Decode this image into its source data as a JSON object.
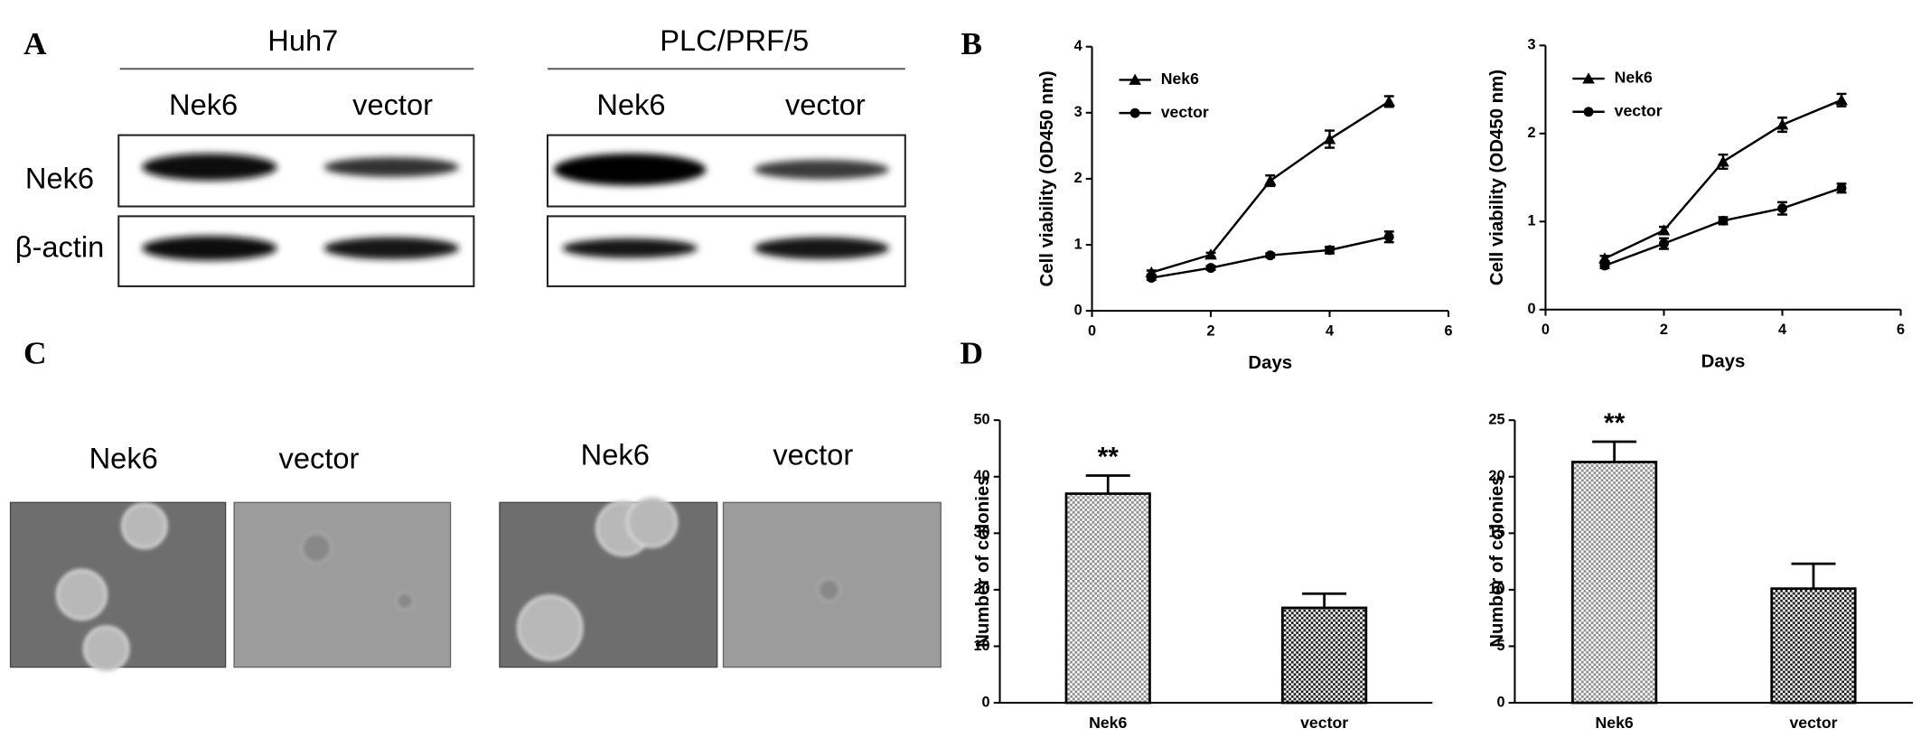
{
  "panel_labels": [
    "A",
    "B",
    "C",
    "D"
  ],
  "blots": {
    "cell_lines": [
      "Huh7",
      "PLC/PRF/5"
    ],
    "lanes": [
      "Nek6",
      "vector",
      "Nek6",
      "vector"
    ],
    "rows": [
      "Nek6",
      "β-actin"
    ]
  },
  "colonies": {
    "lanes": [
      "Nek6",
      "vector",
      "Nek6",
      "vector"
    ]
  },
  "chart_data": [
    {
      "type": "line",
      "x_label": "Days",
      "y_label": "Cell viability (OD450 nm)",
      "x": [
        1,
        2,
        3,
        4,
        5
      ],
      "series": [
        {
          "name": "Nek6",
          "color": "#000000",
          "marker": "triangle",
          "values": [
            0.58,
            0.85,
            1.97,
            2.6,
            3.17
          ],
          "errors": [
            0.03,
            0.03,
            0.08,
            0.13,
            0.08
          ]
        },
        {
          "name": "vector",
          "color": "#000000",
          "marker": "circle",
          "values": [
            0.5,
            0.65,
            0.84,
            0.92,
            1.12
          ],
          "errors": [
            0.03,
            0.03,
            0.03,
            0.05,
            0.08
          ]
        }
      ],
      "xlim": [
        0,
        6
      ],
      "xticks": [
        0,
        2,
        4,
        6
      ],
      "ylim": [
        0,
        4
      ],
      "yticks": [
        0,
        1,
        2,
        3,
        4
      ],
      "legend": "upper left"
    },
    {
      "type": "line",
      "x_label": "Days",
      "y_label": "Cell viability (OD450 nm)",
      "x": [
        1,
        2,
        3,
        4,
        5
      ],
      "series": [
        {
          "name": "Nek6",
          "color": "#000000",
          "marker": "triangle",
          "values": [
            0.58,
            0.9,
            1.68,
            2.1,
            2.38
          ],
          "errors": [
            0.03,
            0.04,
            0.08,
            0.08,
            0.07
          ]
        },
        {
          "name": "vector",
          "color": "#000000",
          "marker": "circle",
          "values": [
            0.5,
            0.75,
            1.01,
            1.15,
            1.38
          ],
          "errors": [
            0.03,
            0.06,
            0.04,
            0.07,
            0.05
          ]
        }
      ],
      "xlim": [
        0,
        6
      ],
      "xticks": [
        0,
        2,
        4,
        6
      ],
      "ylim": [
        0,
        3
      ],
      "yticks": [
        0,
        1,
        2,
        3
      ],
      "legend": "upper left"
    },
    {
      "type": "bar",
      "y_label": "Number of colonies",
      "categories": [
        "Nek6",
        "vector"
      ],
      "values": [
        37,
        16.8
      ],
      "errors": [
        3.2,
        2.5
      ],
      "colors": [
        "#8a8a8a",
        "#1a1a1a"
      ],
      "annotations": [
        {
          "text": "**",
          "x": "Nek6"
        }
      ],
      "ylim": [
        0,
        50
      ],
      "yticks": [
        0,
        10,
        20,
        30,
        40,
        50
      ]
    },
    {
      "type": "bar",
      "y_label": "Number of colonies",
      "categories": [
        "Nek6",
        "vector"
      ],
      "values": [
        21.3,
        10.1
      ],
      "errors": [
        1.8,
        2.2
      ],
      "colors": [
        "#8a8a8a",
        "#1a1a1a"
      ],
      "annotations": [
        {
          "text": "**",
          "x": "Nek6"
        }
      ],
      "ylim": [
        0,
        25
      ],
      "yticks": [
        0,
        5,
        10,
        15,
        20,
        25
      ]
    }
  ]
}
